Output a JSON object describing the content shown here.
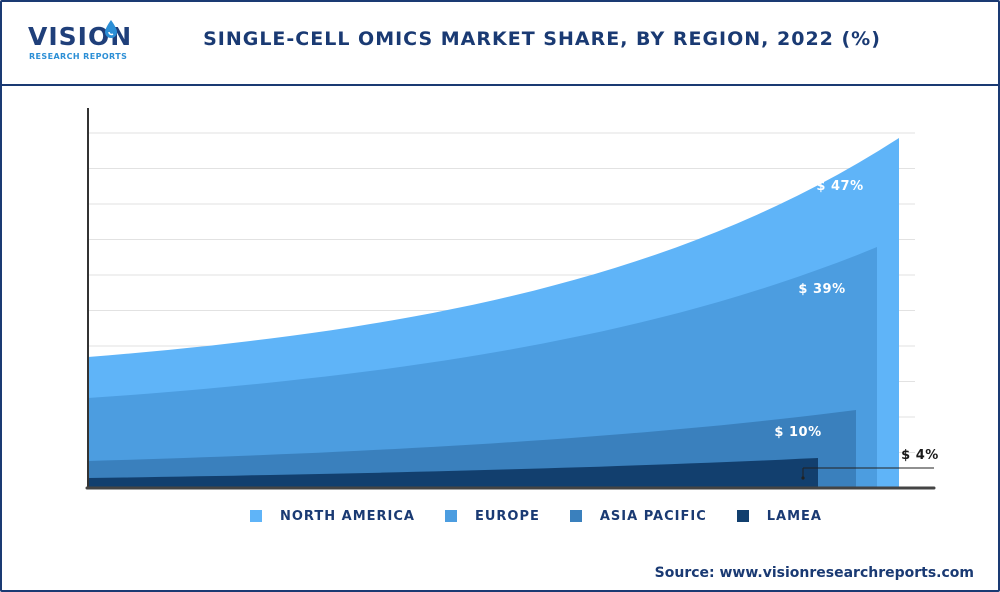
{
  "brand": {
    "name": "VISION",
    "tagline": "RESEARCH REPORTS"
  },
  "header": {
    "title": "SINGLE-CELL OMICS MARKET SHARE, BY REGION, 2022 (%)"
  },
  "chart_data": {
    "type": "area",
    "title": "SINGLE-CELL OMICS MARKET SHARE, BY REGION, 2022 (%)",
    "xlabel": "",
    "ylabel": "",
    "grid": true,
    "legend_position": "bottom",
    "series": [
      {
        "name": "NORTH AMERICA",
        "value": 47,
        "label": "$ 47%",
        "color": "#5fb4f8"
      },
      {
        "name": "EUROPE",
        "value": 39,
        "label": "$ 39%",
        "color": "#4c9de0"
      },
      {
        "name": "ASIA PACIFIC",
        "value": 10,
        "label": "$ 10%",
        "color": "#3a80bd"
      },
      {
        "name": "LAMEA",
        "value": 4,
        "label": "$ 4%",
        "color": "#123f6e"
      }
    ]
  },
  "source": {
    "text": "Source: www.visionresearchreports.com"
  }
}
